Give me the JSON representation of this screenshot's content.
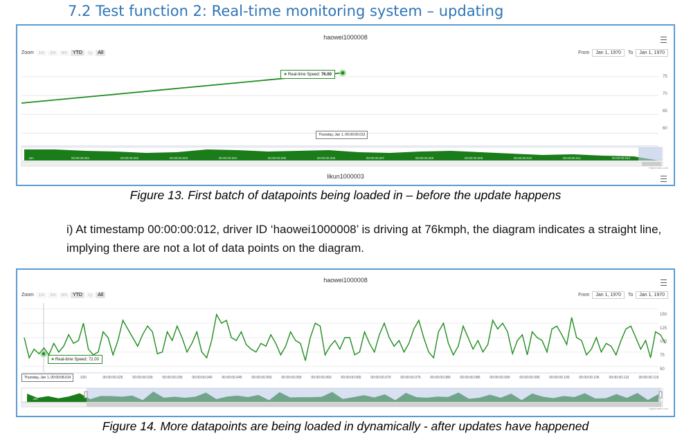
{
  "heading": "7.2 Test function 2: Real-time monitoring system – updating",
  "figure1": {
    "title": "haowei1000008",
    "zoom_label": "Zoom",
    "zoom_buttons": [
      "1m",
      "3m",
      "6m",
      "YTD",
      "1y",
      "All"
    ],
    "from_label": "From",
    "from_value": "Jan 1, 1970",
    "to_label": "To",
    "to_value": "Jan 1, 1970",
    "y_ticks": [
      "75",
      "70",
      "65",
      "60"
    ],
    "tooltip_label": "Real-time Speed:",
    "tooltip_value": "76.00",
    "crosshair_label": "Thursday, Jan 1, 00:00:00.013",
    "navigator_labels": [
      "Jan",
      "00:00:00.001",
      "00:00:00.002",
      "00:00:00.003",
      "00:00:00.004",
      "00:00:00.005",
      "00:00:00.006",
      "00:00:00.007",
      "00:00:00.008",
      "00:00:00.009",
      "00:00:00.010",
      "00:00:00.011",
      "00:00:00.012"
    ],
    "credits": "Highcharts.com",
    "next_chart_title": "likun1000003",
    "caption": "Figure 13. First batch of datapoints being loaded in – before the update happens",
    "line_color": "#1e8c1e"
  },
  "paragraph": "i) At timestamp 00:00:00:012, driver ID ‘haowei1000008’ is driving at 76kmph, the diagram indicates a straight line, implying there are not a lot of data points on the diagram.",
  "figure2": {
    "title": "haowei1000008",
    "zoom_label": "Zoom",
    "zoom_buttons": [
      "1m",
      "3m",
      "6m",
      "YTD",
      "1y",
      "All"
    ],
    "from_label": "From",
    "from_value": "Jan 1, 1970",
    "to_label": "To",
    "to_value": "Jan 1, 1970",
    "y_ticks": [
      "150",
      "125",
      "100",
      "75",
      "50"
    ],
    "tooltip_label": "Real-time Speed:",
    "tooltip_value": "72.00",
    "crosshair_label": "Thursday, Jan 1, 00:00:08.014",
    "x_ticks": [
      ".020",
      "00:00:00.025",
      "00:00:00.030",
      "00:00:00.035",
      "00:00:00.040",
      "00:00:00.045",
      "00:00:00.050",
      "00:00:00.055",
      "00:00:00.060",
      "00:00:00.065",
      "00:00:00.070",
      "00:00:00.075",
      "00:00:00.080",
      "00:00:00.085",
      "00:00:00.090",
      "00:00:00.095",
      "00:00:00.100",
      "00:00:00.105",
      "00:00:00.110",
      "00:00:00.115"
    ],
    "navigator_labels": [
      "Jan"
    ],
    "credits": "Highcharts.com",
    "caption": "Figure 14. More datapoints are being loaded in dynamically - after updates have happened",
    "line_color": "#1e8c1e"
  },
  "chart_data": [
    {
      "type": "line",
      "series": [
        {
          "name": "Real-time Speed",
          "values": [
            68,
            76
          ]
        }
      ],
      "ylim": [
        57,
        79
      ]
    },
    {
      "type": "line",
      "series": [
        {
          "name": "Real-time Speed",
          "values": [
            100,
            65,
            80,
            72,
            82,
            70,
            90,
            75,
            85,
            105,
            90,
            95,
            125,
            80,
            70,
            75,
            110,
            100,
            70,
            95,
            130,
            115,
            100,
            85,
            105,
            120,
            110,
            72,
            75,
            110,
            95,
            120,
            100,
            75,
            90,
            110,
            75,
            65,
            95,
            140,
            125,
            130,
            100,
            95,
            110,
            88,
            80,
            75,
            90,
            85,
            105,
            90,
            70,
            85,
            110,
            95,
            90,
            60,
            100,
            125,
            120,
            70,
            85,
            95,
            80,
            100,
            100,
            70,
            75,
            110,
            90,
            75,
            105,
            125,
            100,
            85,
            95,
            75,
            90,
            115,
            130,
            100,
            75,
            65,
            110,
            125,
            90,
            70,
            85,
            120,
            100,
            80,
            95,
            75,
            88,
            130,
            115,
            125,
            110,
            72,
            95,
            105,
            70,
            110,
            100,
            95,
            75,
            115,
            120,
            105,
            88,
            135,
            100,
            95,
            70,
            80,
            100,
            75,
            90,
            85,
            70,
            95,
            115,
            120,
            100,
            80,
            95,
            65,
            110,
            105,
            90
          ]
        }
      ],
      "ylim": [
        40,
        160
      ]
    }
  ]
}
